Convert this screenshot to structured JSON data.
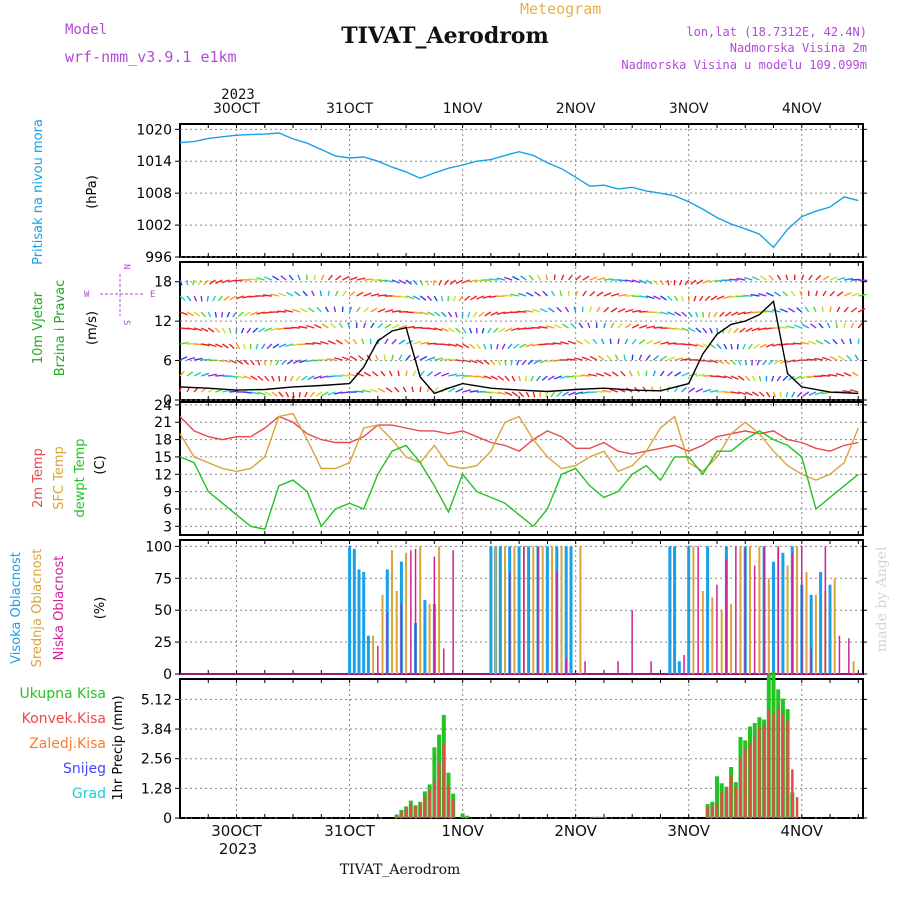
{
  "header": {
    "model_label": "Model",
    "model_name": "wrf-nmm_v3.9.1  e1km",
    "meteogram_label": "Meteogram",
    "station_title": "TIVAT_Aerodrom",
    "lonlat": "lon,lat (18.7312E, 42.4N)",
    "altitude": "Nadmorska Visina 2m",
    "model_altitude": "Nadmorska Visina u modelu 109.099m",
    "year_top": "2023"
  },
  "footer": {
    "station": "TIVAT_Aerodrom",
    "year_bottom": "2023",
    "watermark": "made by Angel"
  },
  "colors": {
    "pressure": "#1aa0e6",
    "t2m": "#e84a4a",
    "sfc": "#d9a53a",
    "dewpt": "#22c322",
    "high_cloud": "#1aa0e6",
    "mid_cloud": "#d9a53a",
    "low_cloud": "#cc2299",
    "total_precip": "#22c322",
    "conv_precip": "#e84a4a",
    "frozen": "#ff7a2a",
    "snow": "#4444ff",
    "hail": "#22cccc",
    "wind_label": "#22aa22",
    "purple_text": "#b44ad8",
    "orange_text": "#e8b040"
  },
  "wind_compass": {
    "n": "N",
    "s": "S",
    "e": "E",
    "w": "W"
  },
  "chart_data": [
    {
      "type": "line",
      "panel": "pressure",
      "label_lines": [
        "Pritisak na nivou mora",
        "(hPa)"
      ],
      "x_ticks": [
        "30OCT",
        "31OCT",
        "1NOV",
        "2NOV",
        "3NOV",
        "4NOV"
      ],
      "x_hours": [
        0,
        24,
        48,
        72,
        96,
        120
      ],
      "xlim_hours": [
        -12,
        133
      ],
      "ylim": [
        996,
        1021
      ],
      "y_ticks": [
        996,
        1002,
        1008,
        1014,
        1020
      ],
      "series": [
        {
          "x": [
            -12,
            -9,
            -6,
            -3,
            0,
            3,
            6,
            9,
            12,
            15,
            18,
            21,
            24,
            27,
            30,
            33,
            36,
            39,
            42,
            45,
            48,
            51,
            54,
            57,
            60,
            63,
            66,
            69,
            72,
            75,
            78,
            81,
            84,
            87,
            90,
            93,
            96,
            99,
            102,
            105,
            108,
            111,
            114,
            117,
            120,
            123,
            126,
            129,
            132
          ],
          "values": [
            1017.5,
            1017.7,
            1018.3,
            1018.6,
            1018.9,
            1019.0,
            1019.1,
            1019.3,
            1018.2,
            1017.4,
            1016.2,
            1015.0,
            1014.6,
            1014.8,
            1014.0,
            1012.9,
            1012.0,
            1010.8,
            1011.8,
            1012.7,
            1013.3,
            1014.0,
            1014.3,
            1015.1,
            1015.8,
            1015.1,
            1013.7,
            1012.6,
            1011.0,
            1009.3,
            1009.5,
            1008.8,
            1009.1,
            1008.4,
            1008.0,
            1007.5,
            1006.4,
            1005.0,
            1003.4,
            1002.2,
            1001.3,
            1000.3,
            997.8,
            1001.2,
            1003.6,
            1004.6,
            1005.4,
            1007.3,
            1006.6
          ]
        }
      ]
    },
    {
      "type": "line",
      "panel": "wind",
      "label_lines": [
        "10m Vjetar",
        "Brzina i Pravac",
        "(m/s)"
      ],
      "ylim": [
        0,
        21
      ],
      "y_ticks": [
        0,
        6,
        12,
        18
      ],
      "series": [
        {
          "name": "speed",
          "x": [
            -12,
            -6,
            0,
            6,
            12,
            18,
            24,
            27,
            30,
            33,
            36,
            39,
            42,
            45,
            48,
            54,
            60,
            66,
            72,
            78,
            84,
            90,
            96,
            99,
            102,
            105,
            108,
            111,
            114,
            117,
            120,
            126,
            132
          ],
          "values": [
            2,
            1.8,
            1.5,
            1.6,
            2.0,
            2.2,
            2.5,
            5,
            9,
            10.5,
            11,
            3.5,
            1,
            1.8,
            2.5,
            1.8,
            1.5,
            1.3,
            1.6,
            1.8,
            1.5,
            1.4,
            2.5,
            7,
            10,
            11.5,
            12,
            13,
            15,
            4,
            2,
            1.2,
            1.0
          ]
        }
      ]
    },
    {
      "type": "line",
      "panel": "temperature",
      "label_lines": [
        "2m Temp",
        "SFC Temp",
        "dewpt Temp",
        "(C)"
      ],
      "ylim": [
        1.5,
        24.5
      ],
      "y_ticks": [
        3,
        6,
        9,
        12,
        15,
        18,
        21,
        24
      ],
      "series": [
        {
          "name": "2m Temp",
          "x": [
            -12,
            -9,
            -6,
            -3,
            0,
            3,
            6,
            9,
            12,
            15,
            18,
            21,
            24,
            27,
            30,
            33,
            36,
            39,
            42,
            45,
            48,
            51,
            54,
            57,
            60,
            63,
            66,
            69,
            72,
            75,
            78,
            81,
            84,
            87,
            90,
            93,
            96,
            99,
            102,
            105,
            108,
            111,
            114,
            117,
            120,
            123,
            126,
            129,
            132
          ],
          "values": [
            22,
            19.5,
            18.5,
            18,
            18.5,
            18.5,
            20,
            22,
            21,
            19,
            18,
            17.5,
            17.5,
            18.5,
            20.5,
            20.5,
            20,
            19.5,
            19.5,
            19,
            19.5,
            18.5,
            17.5,
            17,
            16,
            18,
            19.5,
            18.5,
            16.5,
            16.5,
            17.5,
            16,
            15.5,
            16,
            16.5,
            17,
            16,
            17,
            18.5,
            19,
            19.5,
            19,
            19.5,
            18,
            17.5,
            16.5,
            16,
            17,
            17.5
          ]
        },
        {
          "name": "SFC Temp",
          "x": [
            -12,
            -9,
            -6,
            -3,
            0,
            3,
            6,
            9,
            12,
            15,
            18,
            21,
            24,
            27,
            30,
            33,
            36,
            39,
            42,
            45,
            48,
            51,
            54,
            57,
            60,
            63,
            66,
            69,
            72,
            75,
            78,
            81,
            84,
            87,
            90,
            93,
            96,
            99,
            102,
            105,
            108,
            111,
            114,
            117,
            120,
            123,
            126,
            129,
            132
          ],
          "values": [
            19,
            15,
            14,
            13,
            12.5,
            13,
            15,
            22,
            22.5,
            18,
            13,
            13,
            14,
            20,
            20.5,
            18,
            15,
            14,
            17,
            13.5,
            13,
            13.5,
            16,
            21,
            22,
            18,
            15,
            13,
            13.5,
            15,
            16,
            12.5,
            13.5,
            16,
            20,
            22,
            14,
            12.5,
            15,
            19,
            21,
            19,
            16,
            13.5,
            12,
            11,
            12,
            14,
            20
          ]
        },
        {
          "name": "dewpt Temp",
          "x": [
            -12,
            -9,
            -6,
            -3,
            0,
            3,
            6,
            9,
            12,
            15,
            18,
            21,
            24,
            27,
            30,
            33,
            36,
            39,
            42,
            45,
            48,
            51,
            54,
            57,
            60,
            63,
            66,
            69,
            72,
            75,
            78,
            81,
            84,
            87,
            90,
            93,
            96,
            99,
            102,
            105,
            108,
            111,
            114,
            117,
            120,
            123,
            126,
            129,
            132
          ],
          "values": [
            15,
            14,
            9,
            7,
            5,
            3,
            2.5,
            10,
            11,
            9,
            3,
            6,
            7,
            6,
            12,
            16,
            17,
            14,
            10,
            5.5,
            12,
            9,
            8,
            7,
            5,
            3,
            6,
            12,
            13,
            10,
            8,
            9,
            12,
            13.5,
            11,
            15,
            15,
            12,
            16,
            16,
            18,
            19.5,
            18,
            17,
            15,
            6,
            8,
            10,
            12
          ]
        }
      ]
    },
    {
      "type": "bar",
      "panel": "cloud",
      "label_lines": [
        "Visoka Oblacnost",
        "Srednja Oblacnost",
        "Niska Oblacnost",
        "(%)"
      ],
      "ylim": [
        0,
        105
      ],
      "y_ticks": [
        0,
        25,
        50,
        75,
        100
      ],
      "series": [
        {
          "name": "Visoka Oblacnost",
          "x": [
            24,
            25,
            26,
            27,
            28,
            32,
            35,
            38,
            40,
            42,
            54,
            55,
            56,
            58,
            60,
            62,
            64,
            66,
            68,
            70,
            71,
            92,
            93,
            94,
            96,
            100,
            104,
            108,
            112,
            114,
            116,
            118,
            120,
            122,
            124,
            126
          ],
          "values": [
            100,
            98,
            82,
            80,
            30,
            82,
            88,
            40,
            58,
            55,
            100,
            100,
            100,
            100,
            100,
            100,
            100,
            100,
            100,
            100,
            100,
            100,
            100,
            10,
            100,
            100,
            100,
            100,
            100,
            88,
            95,
            100,
            70,
            62,
            80,
            70
          ]
        },
        {
          "name": "Srednja Oblacnost",
          "x": [
            29,
            31,
            33,
            34,
            36,
            39,
            41,
            43,
            55,
            57,
            59,
            61,
            63,
            65,
            67,
            69,
            73,
            97,
            99,
            101,
            103,
            105,
            107,
            109,
            111,
            113,
            115,
            117,
            119,
            121,
            123,
            125,
            127,
            131
          ],
          "values": [
            30,
            62,
            97,
            65,
            95,
            100,
            55,
            100,
            100,
            100,
            100,
            100,
            100,
            100,
            100,
            100,
            100,
            100,
            65,
            60,
            50,
            55,
            100,
            100,
            100,
            75,
            100,
            85,
            100,
            80,
            62,
            65,
            75,
            10
          ]
        },
        {
          "name": "Niska Oblacnost",
          "x": [
            30,
            32,
            35,
            37,
            38,
            42,
            44,
            46,
            58,
            61,
            64,
            68,
            70,
            74,
            81,
            84,
            88,
            95,
            98,
            102,
            104,
            106,
            108,
            110,
            112,
            115,
            118,
            120,
            122,
            125,
            128,
            130
          ],
          "values": [
            22,
            48,
            55,
            97,
            98,
            92,
            20,
            97,
            80,
            100,
            100,
            80,
            12,
            10,
            10,
            50,
            10,
            15,
            100,
            70,
            90,
            100,
            98,
            85,
            100,
            100,
            95,
            100,
            20,
            100,
            30,
            28
          ]
        }
      ]
    },
    {
      "type": "bar",
      "panel": "precip",
      "label_lines": [
        "1hr Precip (mm)"
      ],
      "legend": [
        "Ukupna Kisa",
        "Konvek.Kisa",
        "Zaledj.Kisa",
        "Snijeg",
        "Grad"
      ],
      "ylim": [
        0,
        6.0
      ],
      "y_ticks": [
        0,
        1.28,
        2.56,
        3.84,
        5.12
      ],
      "series": [
        {
          "name": "Ukupna Kisa",
          "x": [
            34,
            35,
            36,
            37,
            38,
            39,
            40,
            41,
            42,
            43,
            44,
            45,
            46,
            48,
            49,
            76,
            77,
            78,
            100,
            101,
            102,
            103,
            104,
            105,
            106,
            107,
            108,
            109,
            110,
            111,
            112,
            113,
            114,
            115,
            116,
            117,
            118
          ],
          "values": [
            0.15,
            0.35,
            0.5,
            0.75,
            0.55,
            0.7,
            1.15,
            1.45,
            3.05,
            3.6,
            4.45,
            1.95,
            1.05,
            0.2,
            0.1,
            0.05,
            0.05,
            0.03,
            0.6,
            0.7,
            1.8,
            1.5,
            1.35,
            2.2,
            1.55,
            3.5,
            3.35,
            3.95,
            4.1,
            4.35,
            4.25,
            6.2,
            6.3,
            5.55,
            5.15,
            4.7,
            1.1
          ]
        },
        {
          "name": "Konvek.Kisa",
          "x": [
            34,
            35,
            36,
            37,
            38,
            39,
            40,
            41,
            42,
            43,
            44,
            45,
            46,
            100,
            101,
            102,
            103,
            104,
            105,
            106,
            107,
            108,
            109,
            110,
            111,
            112,
            113,
            114,
            115,
            116,
            117,
            118,
            119
          ],
          "values": [
            0.1,
            0.25,
            0.45,
            0.6,
            0.5,
            0.6,
            0.9,
            1.2,
            1.6,
            2.4,
            3.2,
            1.4,
            0.8,
            0.5,
            0.5,
            0.6,
            1.1,
            1.3,
            1.8,
            1.3,
            2.6,
            3.0,
            3.2,
            3.5,
            3.9,
            4.0,
            4.7,
            4.5,
            4.8,
            4.5,
            4.2,
            2.1,
            0.9
          ]
        }
      ]
    }
  ]
}
